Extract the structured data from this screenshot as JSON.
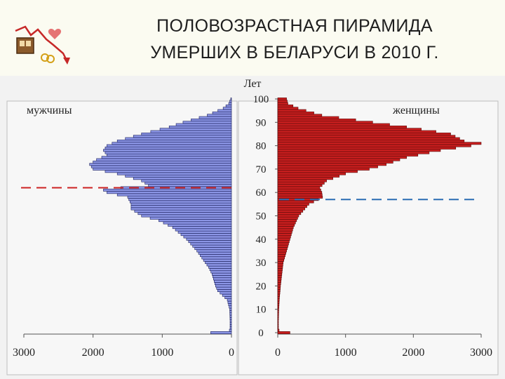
{
  "slide": {
    "title_line1": "ПОЛОВОЗРАСТНАЯ ПИРАМИДА",
    "title_line2": "УМЕРШИХ В БЕЛАРУСИ В 2010 Г."
  },
  "chart_data": {
    "type": "bar",
    "orientation": "horizontal-pyramid",
    "y_axis_label": "Лет",
    "y_ticks": [
      0,
      10,
      20,
      30,
      40,
      50,
      60,
      70,
      80,
      90,
      100
    ],
    "y_range": [
      0,
      100
    ],
    "men_axis_ticks": [
      3000,
      2000,
      1000,
      0
    ],
    "women_axis_ticks": [
      0,
      1000,
      2000,
      3000
    ],
    "x_range": [
      0,
      3000
    ],
    "grid": false,
    "colors": {
      "men": "#8c96e6",
      "men_stripe": "#1a1e5a",
      "women": "#c81e1e",
      "women_stripe": "#5a0a0a",
      "men_ref_line": "#cc2222",
      "women_ref_line": "#2a6db4"
    },
    "reference_lines": {
      "men_age": 62,
      "women_age": 57
    },
    "series": [
      {
        "name": "мужчины",
        "anchors_age": [
          0,
          1,
          2,
          5,
          10,
          14,
          16,
          18,
          20,
          22,
          25,
          28,
          30,
          35,
          40,
          45,
          48,
          50,
          53,
          55,
          58,
          60,
          61,
          62,
          63,
          65,
          68,
          70,
          72,
          74,
          76,
          78,
          80,
          82,
          85,
          88,
          90,
          93,
          96,
          98,
          100
        ],
        "anchors_value": [
          300,
          30,
          20,
          20,
          25,
          60,
          130,
          200,
          230,
          250,
          280,
          330,
          380,
          500,
          650,
          850,
          1050,
          1300,
          1450,
          1450,
          1500,
          1800,
          1850,
          1600,
          1200,
          1300,
          1650,
          2000,
          2050,
          1950,
          1800,
          1850,
          1800,
          1650,
          1300,
          900,
          700,
          350,
          120,
          40,
          10
        ]
      },
      {
        "name": "женщины",
        "anchors_age": [
          0,
          1,
          2,
          5,
          10,
          15,
          18,
          20,
          25,
          30,
          35,
          38,
          40,
          45,
          50,
          53,
          55,
          57,
          58,
          60,
          62,
          65,
          68,
          70,
          72,
          75,
          78,
          80,
          81,
          82,
          85,
          88,
          90,
          93,
          96,
          98,
          100
        ],
        "anchors_value": [
          180,
          20,
          10,
          10,
          15,
          25,
          35,
          40,
          60,
          80,
          130,
          160,
          180,
          230,
          310,
          400,
          460,
          600,
          660,
          650,
          620,
          720,
          1000,
          1350,
          1600,
          1900,
          2400,
          2850,
          3000,
          2750,
          2550,
          1900,
          1400,
          650,
          300,
          150,
          130
        ]
      }
    ]
  }
}
